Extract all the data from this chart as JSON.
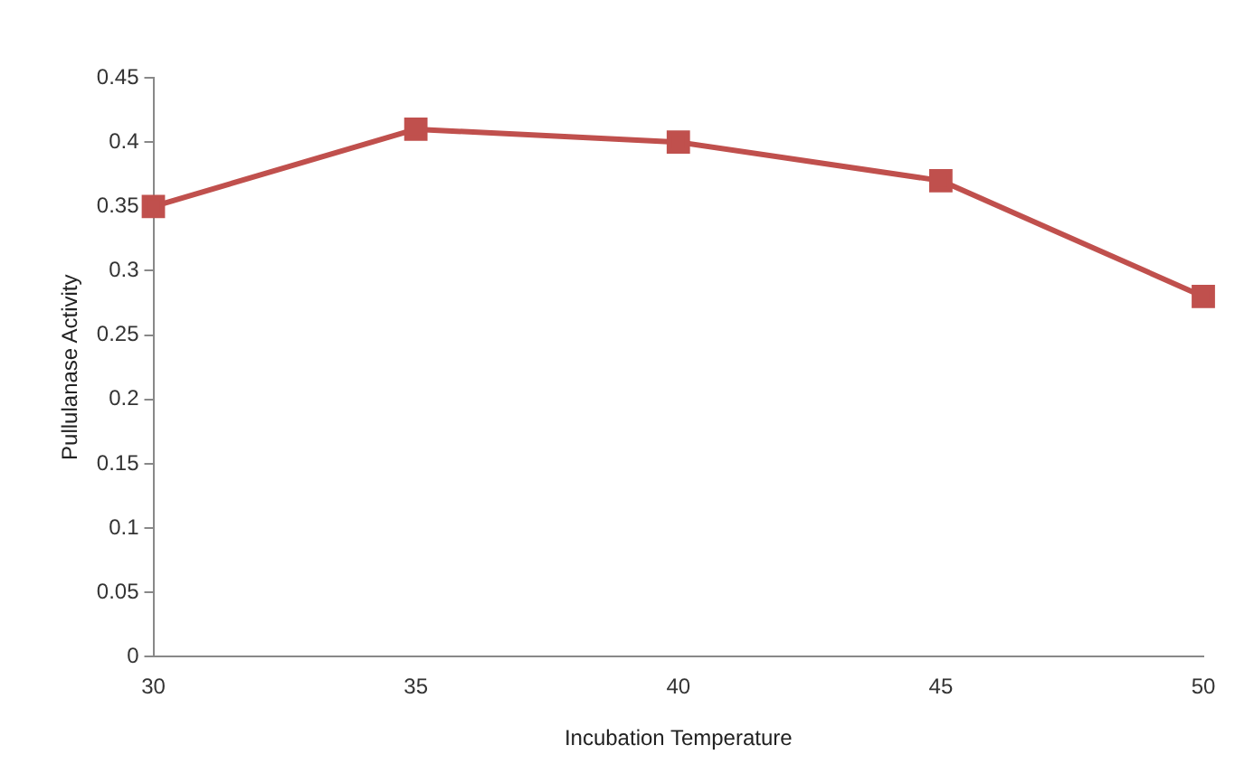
{
  "chart_data": {
    "type": "line",
    "xlabel": "Incubation Temperature",
    "ylabel": "Pullulanase Activity",
    "categories": [
      "30",
      "35",
      "40",
      "45",
      "50"
    ],
    "series": [
      {
        "color": "#c0504d",
        "values": [
          0.35,
          0.41,
          0.4,
          0.37,
          0.28
        ]
      }
    ],
    "ylim": [
      0,
      0.45
    ],
    "yticks": [
      0,
      0.05,
      0.1,
      0.15,
      0.2,
      0.25,
      0.3,
      0.35,
      0.4,
      0.45
    ],
    "grid": false,
    "legend": false,
    "marker": "square",
    "line_style": "solid"
  }
}
